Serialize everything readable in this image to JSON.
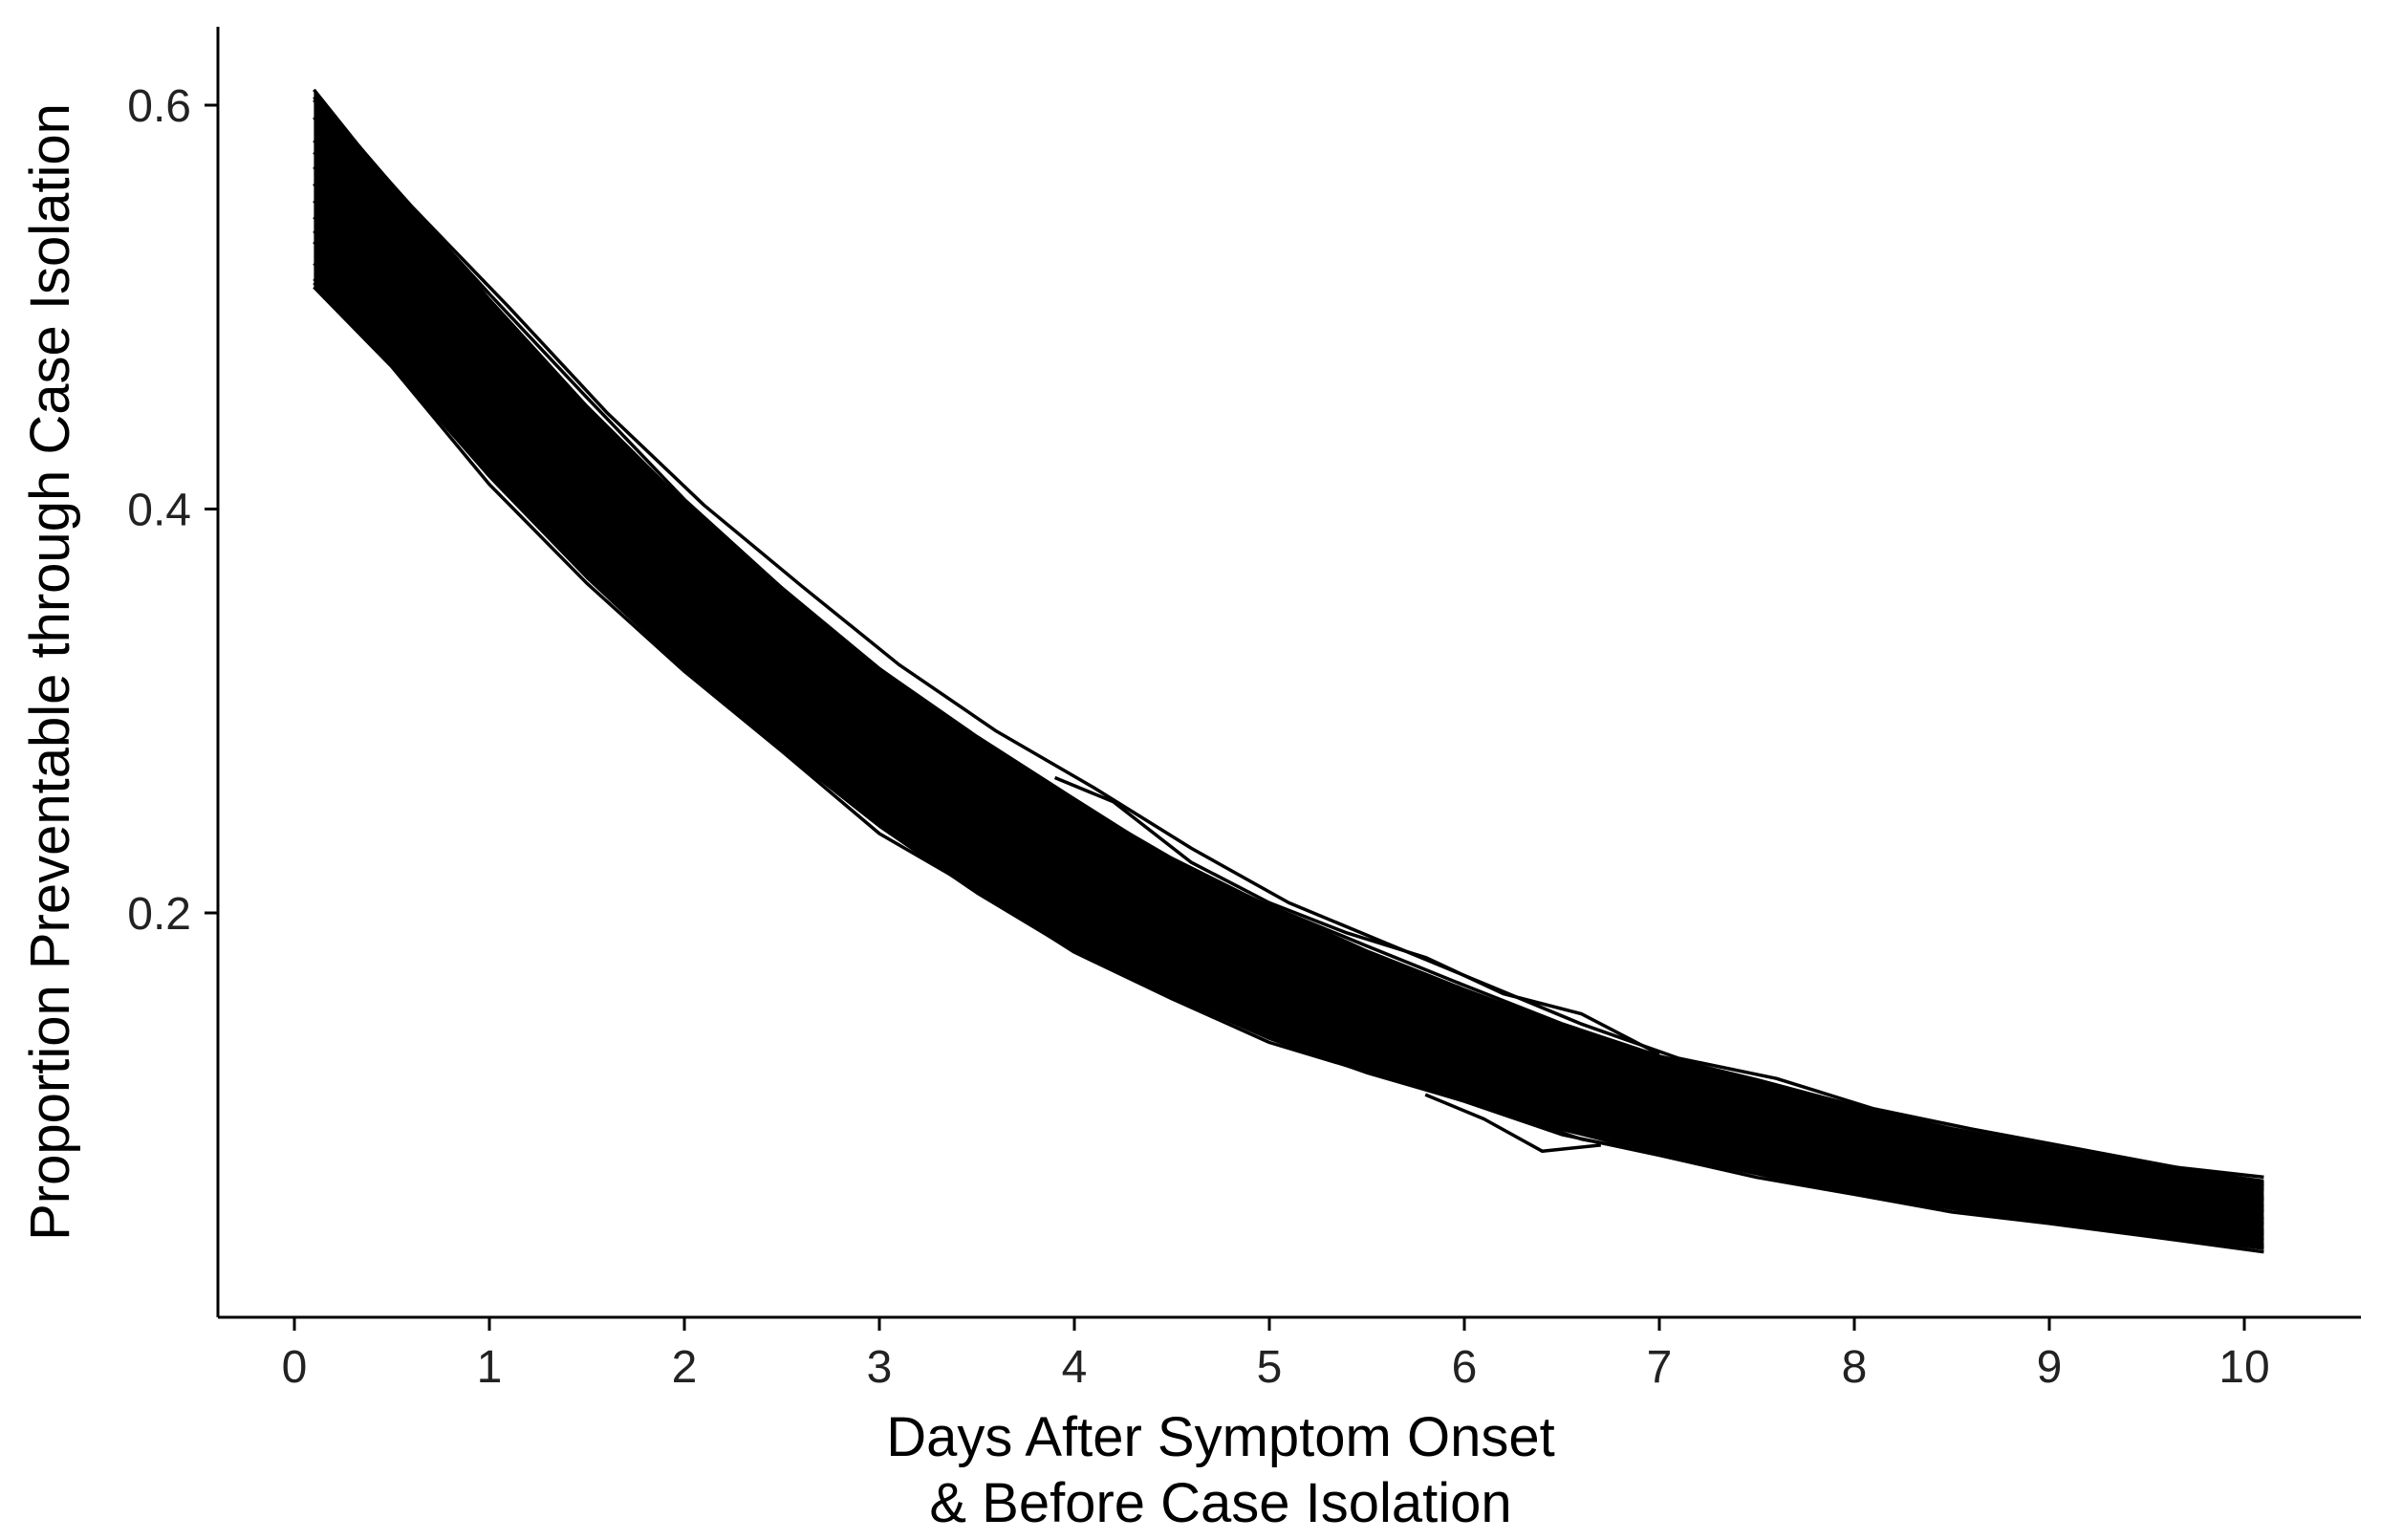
{
  "chart_data": {
    "type": "line",
    "title": "",
    "xlabel_lines": [
      "Days After Symptom Onset",
      "& Before Case Isolation"
    ],
    "ylabel": "Proportion Preventable through Case Isolation",
    "xlim": [
      -0.4,
      10.6
    ],
    "ylim": [
      0.0,
      0.64
    ],
    "x_ticks": [
      0,
      1,
      2,
      3,
      4,
      5,
      6,
      7,
      8,
      9,
      10
    ],
    "x_tick_labels": [
      "0",
      "1",
      "2",
      "3",
      "4",
      "5",
      "6",
      "7",
      "8",
      "9",
      "10"
    ],
    "y_ticks": [
      0.2,
      0.4,
      0.6
    ],
    "y_tick_labels": [
      "0.2",
      "0.4",
      "0.6"
    ],
    "grid": false,
    "legend": "none",
    "line_color": "#000000",
    "simulation_count_visible": "many overlapping simulation runs forming a dense band",
    "band": {
      "x": [
        0.1,
        0.5,
        1.0,
        1.5,
        2.0,
        2.5,
        3.0,
        3.5,
        4.0,
        4.5,
        5.0,
        5.5,
        6.0,
        6.5,
        7.0,
        7.5,
        8.0,
        8.5,
        9.0,
        9.5,
        10.1
      ],
      "upper": [
        0.607,
        0.562,
        0.505,
        0.452,
        0.404,
        0.362,
        0.322,
        0.287,
        0.256,
        0.228,
        0.204,
        0.182,
        0.163,
        0.145,
        0.129,
        0.117,
        0.105,
        0.094,
        0.085,
        0.076,
        0.068
      ],
      "lower": [
        0.51,
        0.47,
        0.415,
        0.365,
        0.32,
        0.28,
        0.242,
        0.209,
        0.18,
        0.158,
        0.137,
        0.12,
        0.106,
        0.092,
        0.08,
        0.07,
        0.06,
        0.053,
        0.046,
        0.04,
        0.033
      ]
    },
    "outlier_lines": [
      {
        "x": [
          0.1,
          0.6,
          1.1,
          1.6,
          2.1,
          2.6,
          3.1,
          3.6,
          4.1,
          4.6,
          5.1,
          5.6,
          6.1,
          6.6,
          7.1,
          7.6,
          8.1,
          8.6,
          9.1,
          9.6,
          10.1
        ],
        "y": [
          0.604,
          0.55,
          0.5,
          0.448,
          0.402,
          0.362,
          0.323,
          0.29,
          0.262,
          0.232,
          0.205,
          0.185,
          0.165,
          0.145,
          0.128,
          0.118,
          0.103,
          0.093,
          0.084,
          0.075,
          0.066
        ]
      },
      {
        "x": [
          0.1,
          0.6,
          1.1,
          1.6,
          2.1,
          2.6,
          3.1,
          3.6,
          4.1,
          4.6,
          5.1,
          5.6,
          6.1,
          6.6,
          7.1,
          7.6,
          8.1,
          8.6,
          9.1,
          9.6,
          10.1
        ],
        "y": [
          0.512,
          0.465,
          0.412,
          0.362,
          0.318,
          0.278,
          0.24,
          0.205,
          0.178,
          0.155,
          0.135,
          0.12,
          0.104,
          0.088,
          0.079,
          0.069,
          0.06,
          0.052,
          0.046,
          0.04,
          0.034
        ]
      },
      {
        "x": [
          3.9,
          4.2,
          4.6,
          5.0,
          5.4,
          5.8,
          6.2,
          6.6,
          7.0
        ],
        "y": [
          0.267,
          0.255,
          0.225,
          0.205,
          0.19,
          0.178,
          0.16,
          0.15,
          0.13
        ]
      },
      {
        "x": [
          5.8,
          6.1,
          6.4,
          6.7
        ],
        "y": [
          0.11,
          0.098,
          0.082,
          0.085
        ]
      }
    ]
  }
}
